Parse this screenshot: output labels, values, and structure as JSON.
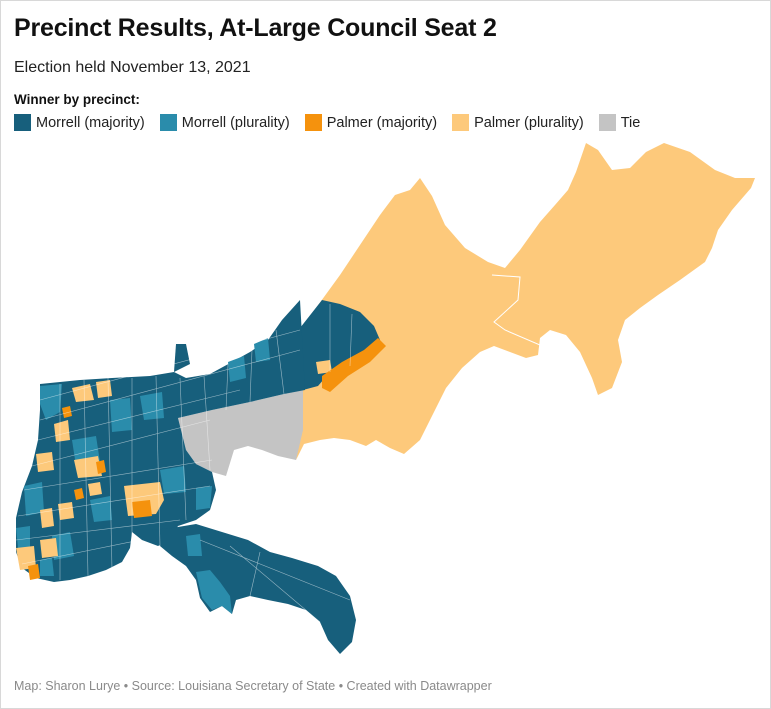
{
  "title": "Precinct Results, At-Large Council Seat 2",
  "subtitle": "Election held November 13, 2021",
  "legend": {
    "title": "Winner by precinct:",
    "items": [
      {
        "label": "Morrell (majority)",
        "color": "#175f7c"
      },
      {
        "label": "Morrell (plurality)",
        "color": "#2a8cab"
      },
      {
        "label": "Palmer (majority)",
        "color": "#f5920d"
      },
      {
        "label": "Palmer (plurality)",
        "color": "#fdc97b"
      },
      {
        "label": "Tie",
        "color": "#c4c4c4"
      }
    ]
  },
  "footer": "Map: Sharon Lurye • Source: Louisiana Secretary of State • Created with Datawrapper"
}
